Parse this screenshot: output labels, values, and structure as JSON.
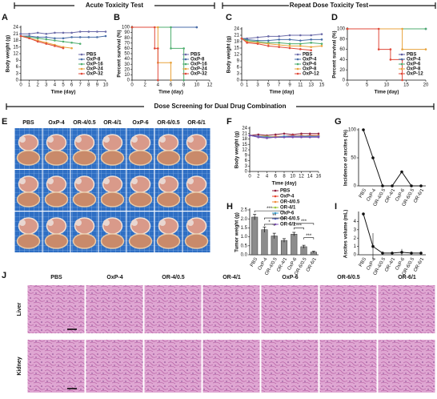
{
  "headers": [
    "Acute Toxicity Test",
    "Repeat Dose Toxicity Test",
    "Dose Screening for Dual Drug Combination"
  ],
  "panel_labels": [
    "A",
    "B",
    "C",
    "D",
    "E",
    "F",
    "G",
    "H",
    "I",
    "J"
  ],
  "photo_groups": [
    "PBS",
    "OxP-4",
    "OR-4/0.5",
    "OR-4/1",
    "OxP-6",
    "OR-6/0.5",
    "OR-6/1"
  ],
  "histology_groups": [
    "PBS",
    "OxP-4",
    "OR-4/0.5",
    "OR-4/1",
    "OxP-6",
    "OR-6/0.5",
    "OR-6/1"
  ],
  "histology_rows": [
    "Liver",
    "Kidney"
  ],
  "chart_data": [
    {
      "type": "line",
      "ylabel": "Body weight (g)",
      "xlabel": "Time (day)",
      "legend": "lower right",
      "x": [
        0,
        1,
        2,
        3,
        4,
        5,
        6,
        7,
        8,
        9,
        10
      ],
      "xlim": [
        0,
        10
      ],
      "xticks": [
        0,
        1,
        2,
        3,
        4,
        5,
        6,
        7,
        8,
        9,
        10
      ],
      "ylim": [
        0,
        24
      ],
      "yticks": [
        0,
        3,
        6,
        9,
        12,
        15,
        18,
        21,
        24
      ],
      "series": [
        {
          "name": "PBS",
          "color": "#6a6aa8",
          "values": [
            21,
            21,
            21.5,
            21,
            21.5,
            21.5,
            21.5,
            22,
            22,
            22,
            22
          ]
        },
        {
          "name": "OxP-8",
          "color": "#4a6ea8",
          "values": [
            20,
            20,
            19.5,
            19.5,
            19,
            19,
            19.5,
            19.5,
            19.5,
            19.5,
            20
          ]
        },
        {
          "name": "OxP-16",
          "color": "#4fae6f",
          "values": [
            20,
            19.5,
            19,
            18.5,
            18,
            17.5,
            17,
            16.5,
            null,
            null,
            null
          ]
        },
        {
          "name": "OxP-24",
          "color": "#e8a33c",
          "values": [
            20,
            19,
            18,
            17,
            16,
            15,
            14.5,
            null,
            null,
            null,
            null
          ]
        },
        {
          "name": "OxP-32",
          "color": "#e04a3a",
          "values": [
            20,
            19,
            17.5,
            16.5,
            15.5,
            14.5,
            null,
            null,
            null,
            null,
            null
          ]
        }
      ]
    },
    {
      "type": "line",
      "ylabel": "Percent survival (%)",
      "xlabel": "Time (day)",
      "legend": "lower right",
      "xlim": [
        0,
        12
      ],
      "xticks": [
        0,
        2,
        4,
        6,
        8,
        10,
        12
      ],
      "ylim": [
        0,
        100
      ],
      "yticks": [
        0,
        10,
        20,
        30,
        40,
        50,
        60,
        70,
        80,
        90,
        100
      ],
      "series": [
        {
          "name": "PBS",
          "color": "#6a6aa8",
          "x": [
            0,
            10
          ],
          "values": [
            100,
            100
          ]
        },
        {
          "name": "OxP-8",
          "color": "#4a6ea8",
          "x": [
            0,
            10
          ],
          "values": [
            100,
            100
          ]
        },
        {
          "name": "OxP-16",
          "color": "#4fae6f",
          "x": [
            0,
            6,
            6,
            8,
            8
          ],
          "values": [
            100,
            100,
            60,
            60,
            0
          ]
        },
        {
          "name": "OxP-24",
          "color": "#e8a33c",
          "x": [
            0,
            4,
            4,
            6,
            6
          ],
          "values": [
            100,
            100,
            33,
            33,
            0
          ]
        },
        {
          "name": "OxP-32",
          "color": "#e04a3a",
          "x": [
            0,
            3.5,
            3.5,
            4,
            4
          ],
          "values": [
            100,
            100,
            60,
            60,
            0
          ]
        }
      ]
    },
    {
      "type": "line",
      "ylabel": "Body weight (g)",
      "xlabel": "Time (day)",
      "legend": "lower right",
      "x": [
        0,
        1,
        3,
        5,
        7,
        9,
        11,
        13,
        15
      ],
      "xlim": [
        0,
        15
      ],
      "xticks": [
        0,
        1,
        3,
        5,
        7,
        9,
        11,
        13,
        15
      ],
      "ylim": [
        0,
        24
      ],
      "yticks": [
        0,
        3,
        6,
        9,
        12,
        15,
        18,
        21,
        24
      ],
      "series": [
        {
          "name": "PBS",
          "color": "#6a6aa8",
          "values": [
            19.5,
            19.5,
            20,
            20.5,
            20.5,
            21,
            21,
            21,
            21.5
          ]
        },
        {
          "name": "OxP-4",
          "color": "#4a6ea8",
          "values": [
            19.5,
            19,
            18.5,
            18.5,
            19,
            19,
            18.5,
            19,
            19
          ]
        },
        {
          "name": "OxP-6",
          "color": "#4fae6f",
          "values": [
            19.5,
            18.5,
            18,
            17.5,
            17.5,
            17,
            17,
            17.5,
            17
          ]
        },
        {
          "name": "OxP-8",
          "color": "#e8a33c",
          "values": [
            19.5,
            18,
            17.5,
            17,
            16.5,
            16,
            16,
            15.5,
            16
          ]
        },
        {
          "name": "OxP-12",
          "color": "#e04a3a",
          "values": [
            19.5,
            17.5,
            17,
            16,
            15.5,
            15,
            14.5,
            14,
            null
          ]
        }
      ]
    },
    {
      "type": "line",
      "ylabel": "Percent survival (%)",
      "xlabel": "Time (day)",
      "legend": "lower right",
      "xlim": [
        0,
        20
      ],
      "xticks": [
        0,
        5,
        10,
        15,
        20
      ],
      "ylim": [
        0,
        100
      ],
      "yticks": [
        0,
        20,
        40,
        60,
        80,
        100
      ],
      "series": [
        {
          "name": "PBS",
          "color": "#5a5aa0",
          "x": [
            0,
            20
          ],
          "values": [
            100,
            100
          ]
        },
        {
          "name": "OxP-4",
          "color": "#4a6ea8",
          "x": [
            0,
            20
          ],
          "values": [
            100,
            100
          ]
        },
        {
          "name": "OxP-6",
          "color": "#4fae6f",
          "x": [
            0,
            20
          ],
          "values": [
            100,
            100
          ]
        },
        {
          "name": "OxP-8",
          "color": "#e8a33c",
          "x": [
            0,
            14,
            14,
            20
          ],
          "values": [
            100,
            100,
            60,
            60
          ]
        },
        {
          "name": "OxP-12",
          "color": "#e04a3a",
          "x": [
            0,
            8,
            8,
            11,
            11,
            14,
            14
          ],
          "values": [
            100,
            100,
            60,
            60,
            40,
            40,
            0
          ]
        }
      ]
    },
    {
      "type": "line",
      "ylabel": "Body weight (g)",
      "xlabel": "Time (day)",
      "legend": "below",
      "x": [
        0,
        2,
        4,
        6,
        8,
        10,
        12,
        14,
        16
      ],
      "xlim": [
        0,
        16
      ],
      "xticks": [
        0,
        2,
        4,
        6,
        8,
        10,
        12,
        14,
        16
      ],
      "ylim": [
        0,
        24
      ],
      "yticks": [
        0,
        3,
        6,
        9,
        12,
        15,
        18,
        21,
        24
      ],
      "series": [
        {
          "name": "PBS",
          "color": "#8b1e3f",
          "values": [
            20,
            20.5,
            20,
            20.5,
            21,
            20.5,
            21,
            21,
            21
          ]
        },
        {
          "name": "OxP-4",
          "color": "#e8432c",
          "values": [
            20,
            19.5,
            19.5,
            19,
            19.5,
            20,
            19.5,
            20,
            20
          ]
        },
        {
          "name": "OR-4/0.5",
          "color": "#f08a3c",
          "values": [
            20,
            19.5,
            19,
            19.5,
            19.5,
            19.5,
            20,
            19.5,
            20
          ]
        },
        {
          "name": "OR-4/1",
          "color": "#9bc53d",
          "values": [
            20,
            19.5,
            19.5,
            19,
            19,
            19.5,
            19.5,
            19.5,
            19.5
          ]
        },
        {
          "name": "OxP-6",
          "color": "#3aa1d0",
          "values": [
            20,
            19,
            19,
            19,
            19.5,
            19.5,
            19.5,
            19.5,
            19.5
          ]
        },
        {
          "name": "OR-6/0.5",
          "color": "#5b6ec7",
          "values": [
            20,
            19.5,
            19,
            19,
            19,
            19.5,
            19.5,
            19,
            19.5
          ]
        },
        {
          "name": "OR-6/1",
          "color": "#7b4fb0",
          "values": [
            20,
            19,
            18.5,
            19,
            19,
            19,
            19,
            19,
            19
          ]
        }
      ]
    },
    {
      "type": "line",
      "ylabel": "Incidence of ascites (%)",
      "categories": [
        "PBS",
        "OxP-4",
        "OR-4/0.5",
        "OR-4/1",
        "OxP-6",
        "OR-6/0.5",
        "OR-6/1"
      ],
      "ylim": [
        0,
        100
      ],
      "yticks": [
        0,
        50,
        100
      ],
      "series": [
        {
          "name": "Incidence",
          "color": "#111111",
          "values": [
            100,
            50,
            0,
            0,
            25,
            0,
            0
          ]
        }
      ]
    },
    {
      "type": "bar",
      "ylabel": "Tumor weight (g)",
      "color": "#8c8c8c",
      "categories": [
        "PBS",
        "OxP-4",
        "OR-4/0.5",
        "OR-4/1",
        "OxP-6",
        "OR-6/0.5",
        "OR-6/1"
      ],
      "values": [
        2.1,
        1.4,
        1.05,
        0.8,
        1.15,
        0.45,
        0.15
      ],
      "errors": [
        0.15,
        0.15,
        0.15,
        0.1,
        0.1,
        0.08,
        0.05
      ],
      "ylim": [
        0,
        2.5
      ],
      "yticks": [
        {
          "value": 0,
          "label": "0.0"
        },
        0.5,
        {
          "value": 1,
          "label": "1.0"
        },
        1.5,
        {
          "value": 2,
          "label": "2.0"
        },
        2.5
      ],
      "annotations": [
        "***",
        "**",
        "*",
        "***",
        "***",
        "***"
      ]
    },
    {
      "type": "line",
      "ylabel": "Ascites volume (mL)",
      "categories": [
        "PBS",
        "OxP-4",
        "OR-4/0.5",
        "OR-4/1",
        "OxP-6",
        "OR-6/0.5",
        "OR-6/1"
      ],
      "ylim": [
        0,
        5
      ],
      "yticks": [
        0,
        1,
        2,
        3,
        4
      ],
      "series": [
        {
          "name": "Volume",
          "color": "#111111",
          "values": [
            4.9,
            1.0,
            0.2,
            0.2,
            0.3,
            0.2,
            0.2
          ],
          "errors": [
            0,
            1.6,
            0,
            0,
            0.4,
            0,
            0
          ]
        }
      ]
    }
  ]
}
